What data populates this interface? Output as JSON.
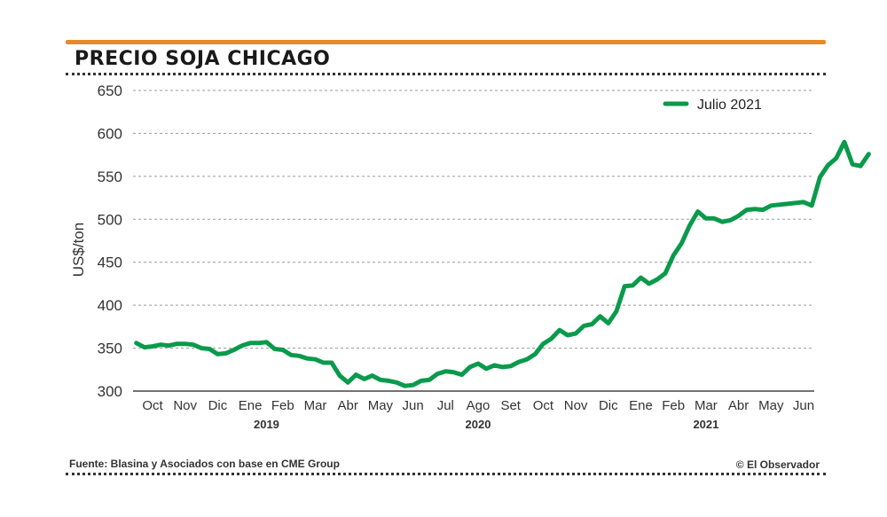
{
  "chart_data": {
    "type": "line",
    "title": "PRECIO SOJA CHICAGO",
    "ylabel": "US$/ton",
    "xlabel": "",
    "ylim": [
      300,
      650
    ],
    "yticks": [
      300,
      350,
      400,
      450,
      500,
      550,
      600,
      650
    ],
    "grid": true,
    "legend_position": "top-right",
    "month_labels": [
      "Oct",
      "Nov",
      "Dic",
      "Ene",
      "Feb",
      "Mar",
      "Abr",
      "May",
      "Jun",
      "Jul",
      "Ago",
      "Set",
      "Oct",
      "Nov",
      "Dic",
      "Ene",
      "Feb",
      "Mar",
      "Abr",
      "May",
      "Jun"
    ],
    "year_labels": [
      {
        "label": "2019",
        "month_index": 3.5
      },
      {
        "label": "2020",
        "month_index": 10
      },
      {
        "label": "2021",
        "month_index": 17
      }
    ],
    "series": [
      {
        "name": "Julio 2021",
        "color": "#0a9a4b",
        "points": [
          [
            -0.5,
            356
          ],
          [
            -0.25,
            351
          ],
          [
            0,
            352
          ],
          [
            0.25,
            354
          ],
          [
            0.5,
            353
          ],
          [
            0.75,
            355
          ],
          [
            1,
            355
          ],
          [
            1.25,
            354
          ],
          [
            1.5,
            350
          ],
          [
            1.75,
            349
          ],
          [
            2,
            343
          ],
          [
            2.25,
            344
          ],
          [
            2.5,
            348
          ],
          [
            2.75,
            353
          ],
          [
            3,
            356
          ],
          [
            3.25,
            356
          ],
          [
            3.5,
            357
          ],
          [
            3.75,
            349
          ],
          [
            4,
            348
          ],
          [
            4.25,
            342
          ],
          [
            4.5,
            341
          ],
          [
            4.75,
            338
          ],
          [
            5,
            337
          ],
          [
            5.25,
            333
          ],
          [
            5.5,
            333
          ],
          [
            5.75,
            318
          ],
          [
            6,
            310
          ],
          [
            6.25,
            319
          ],
          [
            6.5,
            314
          ],
          [
            6.75,
            318
          ],
          [
            7,
            313
          ],
          [
            7.25,
            312
          ],
          [
            7.5,
            310
          ],
          [
            7.75,
            306
          ],
          [
            8,
            307
          ],
          [
            8.25,
            312
          ],
          [
            8.5,
            313
          ],
          [
            8.75,
            320
          ],
          [
            9,
            323
          ],
          [
            9.25,
            322
          ],
          [
            9.5,
            319
          ],
          [
            9.75,
            328
          ],
          [
            10,
            332
          ],
          [
            10.25,
            326
          ],
          [
            10.5,
            330
          ],
          [
            10.75,
            328
          ],
          [
            11,
            329
          ],
          [
            11.25,
            334
          ],
          [
            11.5,
            337
          ],
          [
            11.75,
            343
          ],
          [
            12,
            355
          ],
          [
            12.25,
            361
          ],
          [
            12.5,
            371
          ],
          [
            12.75,
            365
          ],
          [
            13,
            367
          ],
          [
            13.25,
            376
          ],
          [
            13.5,
            378
          ],
          [
            13.75,
            387
          ],
          [
            14,
            379
          ],
          [
            14.25,
            393
          ],
          [
            14.5,
            422
          ],
          [
            14.75,
            423
          ],
          [
            15,
            432
          ],
          [
            15.25,
            425
          ],
          [
            15.5,
            430
          ],
          [
            15.75,
            437
          ],
          [
            16,
            458
          ],
          [
            16.25,
            472
          ],
          [
            16.5,
            493
          ],
          [
            16.75,
            509
          ],
          [
            17,
            501
          ],
          [
            17.25,
            501
          ],
          [
            17.5,
            497
          ],
          [
            17.75,
            499
          ],
          [
            18,
            504
          ],
          [
            18.25,
            511
          ],
          [
            18.5,
            512
          ],
          [
            18.75,
            511
          ],
          [
            19,
            516
          ],
          [
            19.25,
            517
          ],
          [
            19.5,
            518
          ],
          [
            19.75,
            519
          ],
          [
            20,
            520
          ],
          [
            20.25,
            516
          ],
          [
            20.5,
            549
          ],
          [
            20.75,
            563
          ],
          [
            21,
            571
          ],
          [
            21.25,
            590
          ],
          [
            21.5,
            564
          ],
          [
            21.75,
            562
          ],
          [
            22,
            576
          ]
        ]
      }
    ]
  },
  "footer": {
    "source": "Fuente: Blasina y Asociados con base en CME Group",
    "credit": "© El Observador"
  }
}
